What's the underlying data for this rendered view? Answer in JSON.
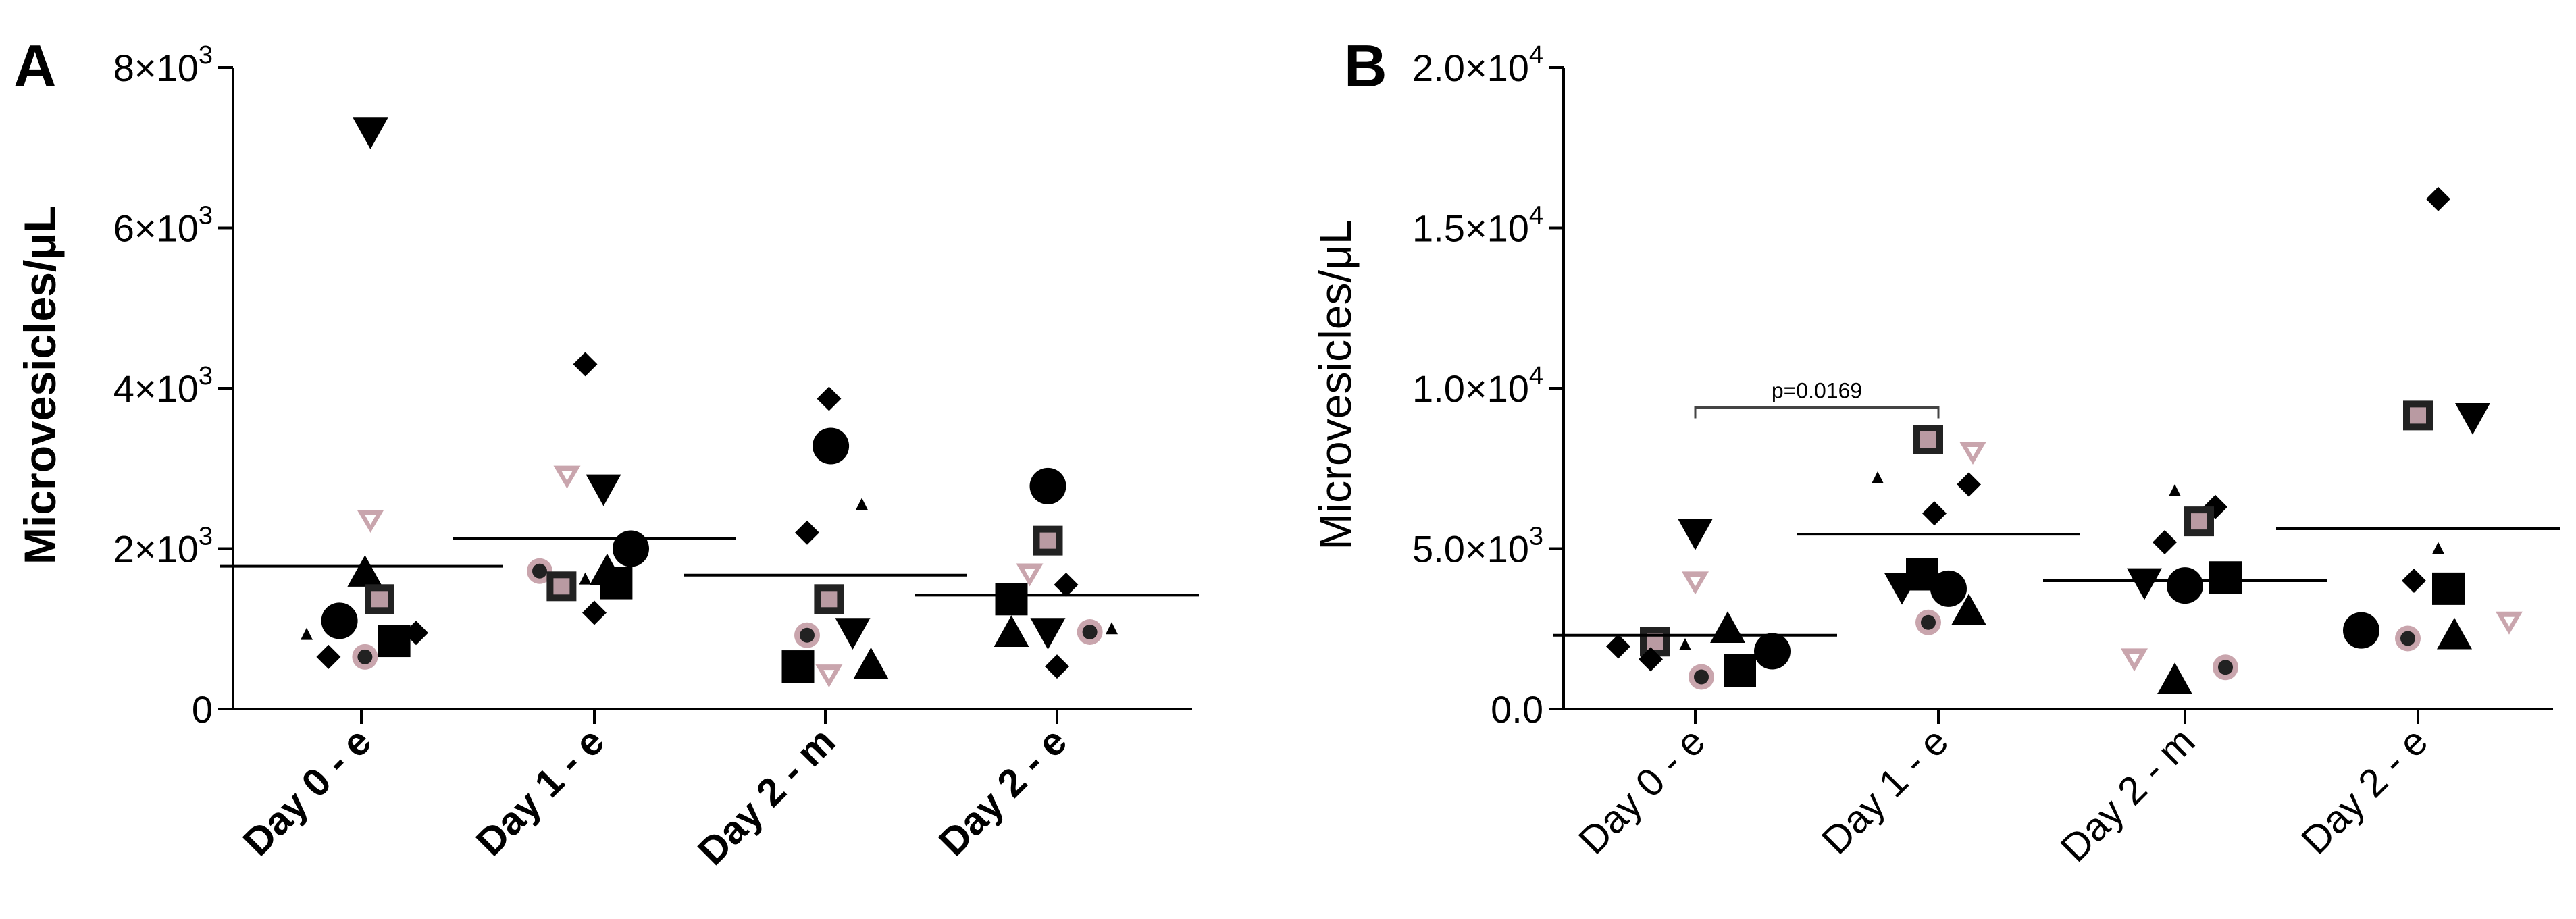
{
  "chart_data": [
    {
      "panel": "A",
      "type": "scatter",
      "ylabel": "Microvesicles/μL",
      "ylim": [
        0,
        8000
      ],
      "ytick_values": [
        0,
        2000,
        4000,
        6000,
        8000
      ],
      "ytick_labels": [
        {
          "main": "0",
          "exp": ""
        },
        {
          "main": "2×10",
          "exp": "3"
        },
        {
          "main": "4×10",
          "exp": "3"
        },
        {
          "main": "6×10",
          "exp": "3"
        },
        {
          "main": "8×10",
          "exp": "3"
        }
      ],
      "categories": [
        "Day 0 - e",
        "Day 1 - e",
        "Day 2 - m",
        "Day 2 - e"
      ],
      "means": [
        1780,
        2130,
        1670,
        1420
      ],
      "points": [
        [
          {
            "v": 7200,
            "m": "triangle-down",
            "o": -0.05
          },
          {
            "v": 2350,
            "m": "triangle-down-light",
            "o": -0.05
          },
          {
            "v": 1700,
            "m": "triangle-up",
            "o": -0.02
          },
          {
            "v": 1370,
            "m": "square-gray",
            "o": -0.1
          },
          {
            "v": 1100,
            "m": "circle",
            "o": 0.12
          },
          {
            "v": 950,
            "m": "diamond",
            "o": -0.3
          },
          {
            "v": 930,
            "m": "triangle-up-small",
            "o": 0.3
          },
          {
            "v": 850,
            "m": "square",
            "o": -0.18
          },
          {
            "v": 650,
            "m": "circle-gray",
            "o": -0.02
          },
          {
            "v": 650,
            "m": "diamond",
            "o": 0.18
          }
        ],
        [
          {
            "v": 4300,
            "m": "diamond",
            "o": 0.05
          },
          {
            "v": 2900,
            "m": "triangle-down-light",
            "o": 0.15
          },
          {
            "v": 2750,
            "m": "triangle-down",
            "o": -0.05
          },
          {
            "v": 2000,
            "m": "circle",
            "o": -0.2
          },
          {
            "v": 1720,
            "m": "triangle-up",
            "o": -0.07
          },
          {
            "v": 1720,
            "m": "circle-gray",
            "o": 0.3
          },
          {
            "v": 1620,
            "m": "triangle-up-small",
            "o": 0.05
          },
          {
            "v": 1570,
            "m": "square",
            "o": -0.12
          },
          {
            "v": 1530,
            "m": "square-gray",
            "o": 0.18
          },
          {
            "v": 1200,
            "m": "diamond",
            "o": 0.0
          }
        ],
        [
          {
            "v": 3870,
            "m": "diamond",
            "o": -0.02
          },
          {
            "v": 3280,
            "m": "circle",
            "o": -0.03
          },
          {
            "v": 2550,
            "m": "triangle-up-small",
            "o": -0.2
          },
          {
            "v": 2200,
            "m": "diamond",
            "o": 0.1
          },
          {
            "v": 1370,
            "m": "square-gray",
            "o": -0.02
          },
          {
            "v": 960,
            "m": "triangle-down",
            "o": -0.15
          },
          {
            "v": 920,
            "m": "circle-gray",
            "o": 0.1
          },
          {
            "v": 550,
            "m": "triangle-up",
            "o": -0.25
          },
          {
            "v": 530,
            "m": "square",
            "o": 0.15
          },
          {
            "v": 420,
            "m": "triangle-down-light",
            "o": -0.02
          }
        ],
        [
          {
            "v": 2780,
            "m": "circle",
            "o": 0.05
          },
          {
            "v": 2100,
            "m": "square-gray",
            "o": 0.05
          },
          {
            "v": 1680,
            "m": "triangle-down-light",
            "o": 0.15
          },
          {
            "v": 1550,
            "m": "diamond",
            "o": -0.05
          },
          {
            "v": 1370,
            "m": "square",
            "o": 0.25
          },
          {
            "v": 1000,
            "m": "triangle-up-small",
            "o": -0.3
          },
          {
            "v": 960,
            "m": "circle-gray",
            "o": -0.18
          },
          {
            "v": 960,
            "m": "triangle-down",
            "o": 0.05
          },
          {
            "v": 950,
            "m": "triangle-up",
            "o": 0.25
          },
          {
            "v": 530,
            "m": "diamond",
            "o": 0.0
          }
        ]
      ]
    },
    {
      "panel": "B",
      "type": "scatter",
      "ylabel": "Microvesicles/μL",
      "ylim": [
        0,
        20000
      ],
      "ytick_values": [
        0,
        5000,
        10000,
        15000,
        20000
      ],
      "ytick_labels": [
        {
          "main": "0.0",
          "exp": ""
        },
        {
          "main": "5.0×10",
          "exp": "3"
        },
        {
          "main": "1.0×10",
          "exp": "4"
        },
        {
          "main": "1.5×10",
          "exp": "4"
        },
        {
          "main": "2.0×10",
          "exp": "4"
        }
      ],
      "categories": [
        "Day 0 - e",
        "Day 1 - e",
        "Day 2 - m",
        "Day 2 - e"
      ],
      "means": [
        2300,
        5450,
        4000,
        5620
      ],
      "annotation": {
        "text": "p=0.0169",
        "from": 0,
        "to": 1,
        "value": 9400
      },
      "points": [
        [
          {
            "v": 5500,
            "m": "triangle-down",
            "o": 0.0
          },
          {
            "v": 3950,
            "m": "triangle-down-light",
            "o": 0.0
          },
          {
            "v": 2500,
            "m": "triangle-up",
            "o": 0.16
          },
          {
            "v": 2100,
            "m": "square-gray",
            "o": -0.2
          },
          {
            "v": 2000,
            "m": "triangle-up-small",
            "o": -0.05
          },
          {
            "v": 1950,
            "m": "diamond",
            "o": -0.38
          },
          {
            "v": 1800,
            "m": "circle",
            "o": 0.38
          },
          {
            "v": 1550,
            "m": "diamond",
            "o": -0.22
          },
          {
            "v": 1200,
            "m": "square",
            "o": 0.22
          },
          {
            "v": 1000,
            "m": "circle-gray",
            "o": 0.03
          }
        ],
        [
          {
            "v": 8400,
            "m": "square-gray",
            "o": -0.05
          },
          {
            "v": 8000,
            "m": "triangle-down-light",
            "o": 0.17
          },
          {
            "v": 7200,
            "m": "triangle-up-small",
            "o": -0.3
          },
          {
            "v": 7000,
            "m": "diamond",
            "o": 0.15
          },
          {
            "v": 6100,
            "m": "diamond",
            "o": -0.02
          },
          {
            "v": 4200,
            "m": "square",
            "o": -0.08
          },
          {
            "v": 3800,
            "m": "triangle-down",
            "o": -0.18
          },
          {
            "v": 3750,
            "m": "circle",
            "o": 0.05
          },
          {
            "v": 3050,
            "m": "triangle-up",
            "o": 0.15
          },
          {
            "v": 2700,
            "m": "circle-gray",
            "o": -0.05
          }
        ],
        [
          {
            "v": 6800,
            "m": "triangle-up-small",
            "o": -0.05
          },
          {
            "v": 6300,
            "m": "diamond",
            "o": 0.15
          },
          {
            "v": 5850,
            "m": "square-gray",
            "o": 0.07
          },
          {
            "v": 5200,
            "m": "diamond",
            "o": -0.1
          },
          {
            "v": 4100,
            "m": "square",
            "o": 0.2
          },
          {
            "v": 3950,
            "m": "triangle-down",
            "o": -0.2
          },
          {
            "v": 3850,
            "m": "circle",
            "o": 0.0
          },
          {
            "v": 1550,
            "m": "triangle-down-light",
            "o": -0.25
          },
          {
            "v": 1300,
            "m": "circle-gray",
            "o": 0.2
          },
          {
            "v": 900,
            "m": "triangle-up",
            "o": -0.05
          }
        ],
        [
          {
            "v": 15900,
            "m": "diamond",
            "o": 0.1
          },
          {
            "v": 9150,
            "m": "square-gray",
            "o": 0.0
          },
          {
            "v": 9100,
            "m": "triangle-down",
            "o": 0.27
          },
          {
            "v": 5000,
            "m": "triangle-up-small",
            "o": 0.1
          },
          {
            "v": 4000,
            "m": "diamond",
            "o": -0.02
          },
          {
            "v": 3750,
            "m": "square",
            "o": 0.15
          },
          {
            "v": 2700,
            "m": "triangle-down-light",
            "o": 0.45
          },
          {
            "v": 2450,
            "m": "circle",
            "o": -0.28
          },
          {
            "v": 2300,
            "m": "triangle-up",
            "o": 0.18
          },
          {
            "v": 2200,
            "m": "circle-gray",
            "o": -0.05
          }
        ]
      ]
    }
  ]
}
